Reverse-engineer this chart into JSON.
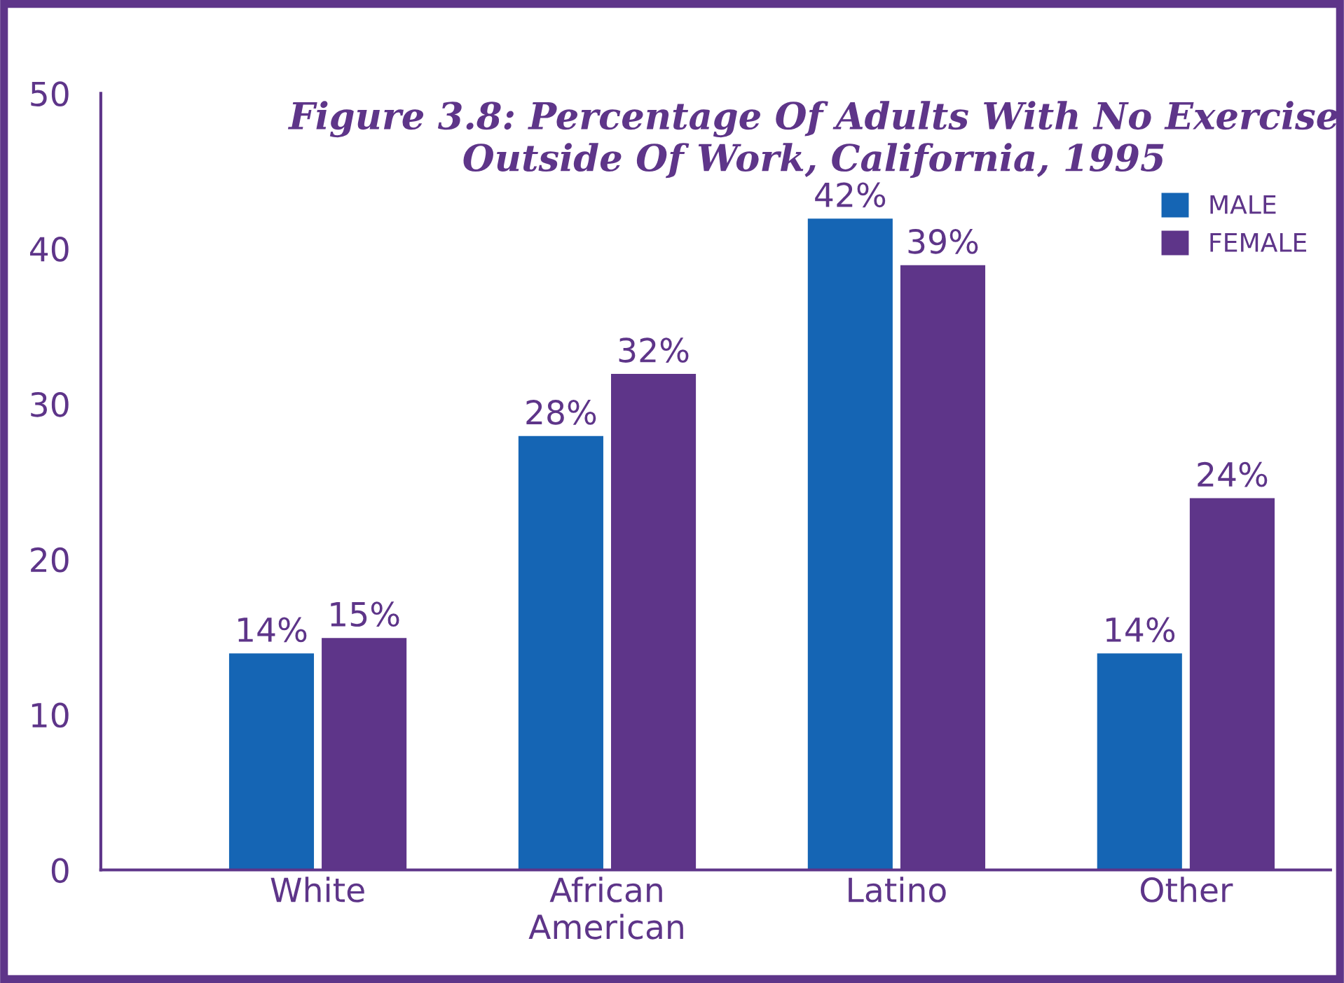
{
  "chart_data": {
    "type": "bar",
    "title": "Figure 3.8: Percentage Of Adults With No Exercise\nOutside Of Work, California, 1995",
    "categories": [
      "White",
      "African\nAmerican",
      "Latino",
      "Other"
    ],
    "series": [
      {
        "name": "MALE",
        "color": "#1565b4",
        "values": [
          14,
          28,
          42,
          14
        ],
        "value_labels": [
          "14%",
          "28%",
          "42%",
          "14%"
        ]
      },
      {
        "name": "FEMALE",
        "color": "#5e3589",
        "values": [
          15,
          32,
          39,
          24
        ],
        "value_labels": [
          "15%",
          "32%",
          "39%",
          "24%"
        ]
      }
    ],
    "ylim": [
      0,
      50
    ],
    "yticks": [
      0,
      10,
      20,
      30,
      40,
      50
    ],
    "grid": false,
    "legend": "top right"
  }
}
